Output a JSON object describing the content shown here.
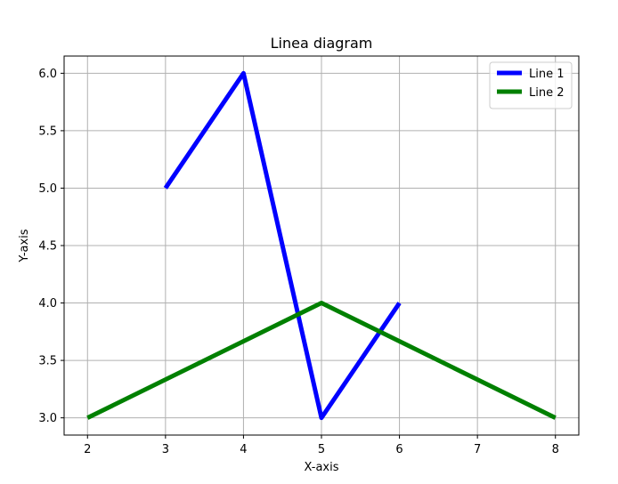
{
  "chart_data": {
    "type": "line",
    "title": "Linea diagram",
    "xlabel": "X-axis",
    "ylabel": "Y-axis",
    "xlim": [
      1.7,
      8.3
    ],
    "ylim": [
      2.85,
      6.15
    ],
    "xticks": [
      2,
      3,
      4,
      5,
      6,
      7,
      8
    ],
    "yticks": [
      3.0,
      3.5,
      4.0,
      4.5,
      5.0,
      5.5,
      6.0
    ],
    "ytick_labels": [
      "3.0",
      "3.5",
      "4.0",
      "4.5",
      "5.0",
      "5.5",
      "6.0"
    ],
    "grid": true,
    "legend_position": "top-right",
    "series": [
      {
        "name": "Line 1",
        "color": "#0000ff",
        "x": [
          3,
          4,
          5,
          6
        ],
        "y": [
          5,
          6,
          3,
          4
        ]
      },
      {
        "name": "Line 2",
        "color": "#008000",
        "x": [
          2,
          5,
          8
        ],
        "y": [
          3,
          4,
          3
        ]
      }
    ]
  }
}
